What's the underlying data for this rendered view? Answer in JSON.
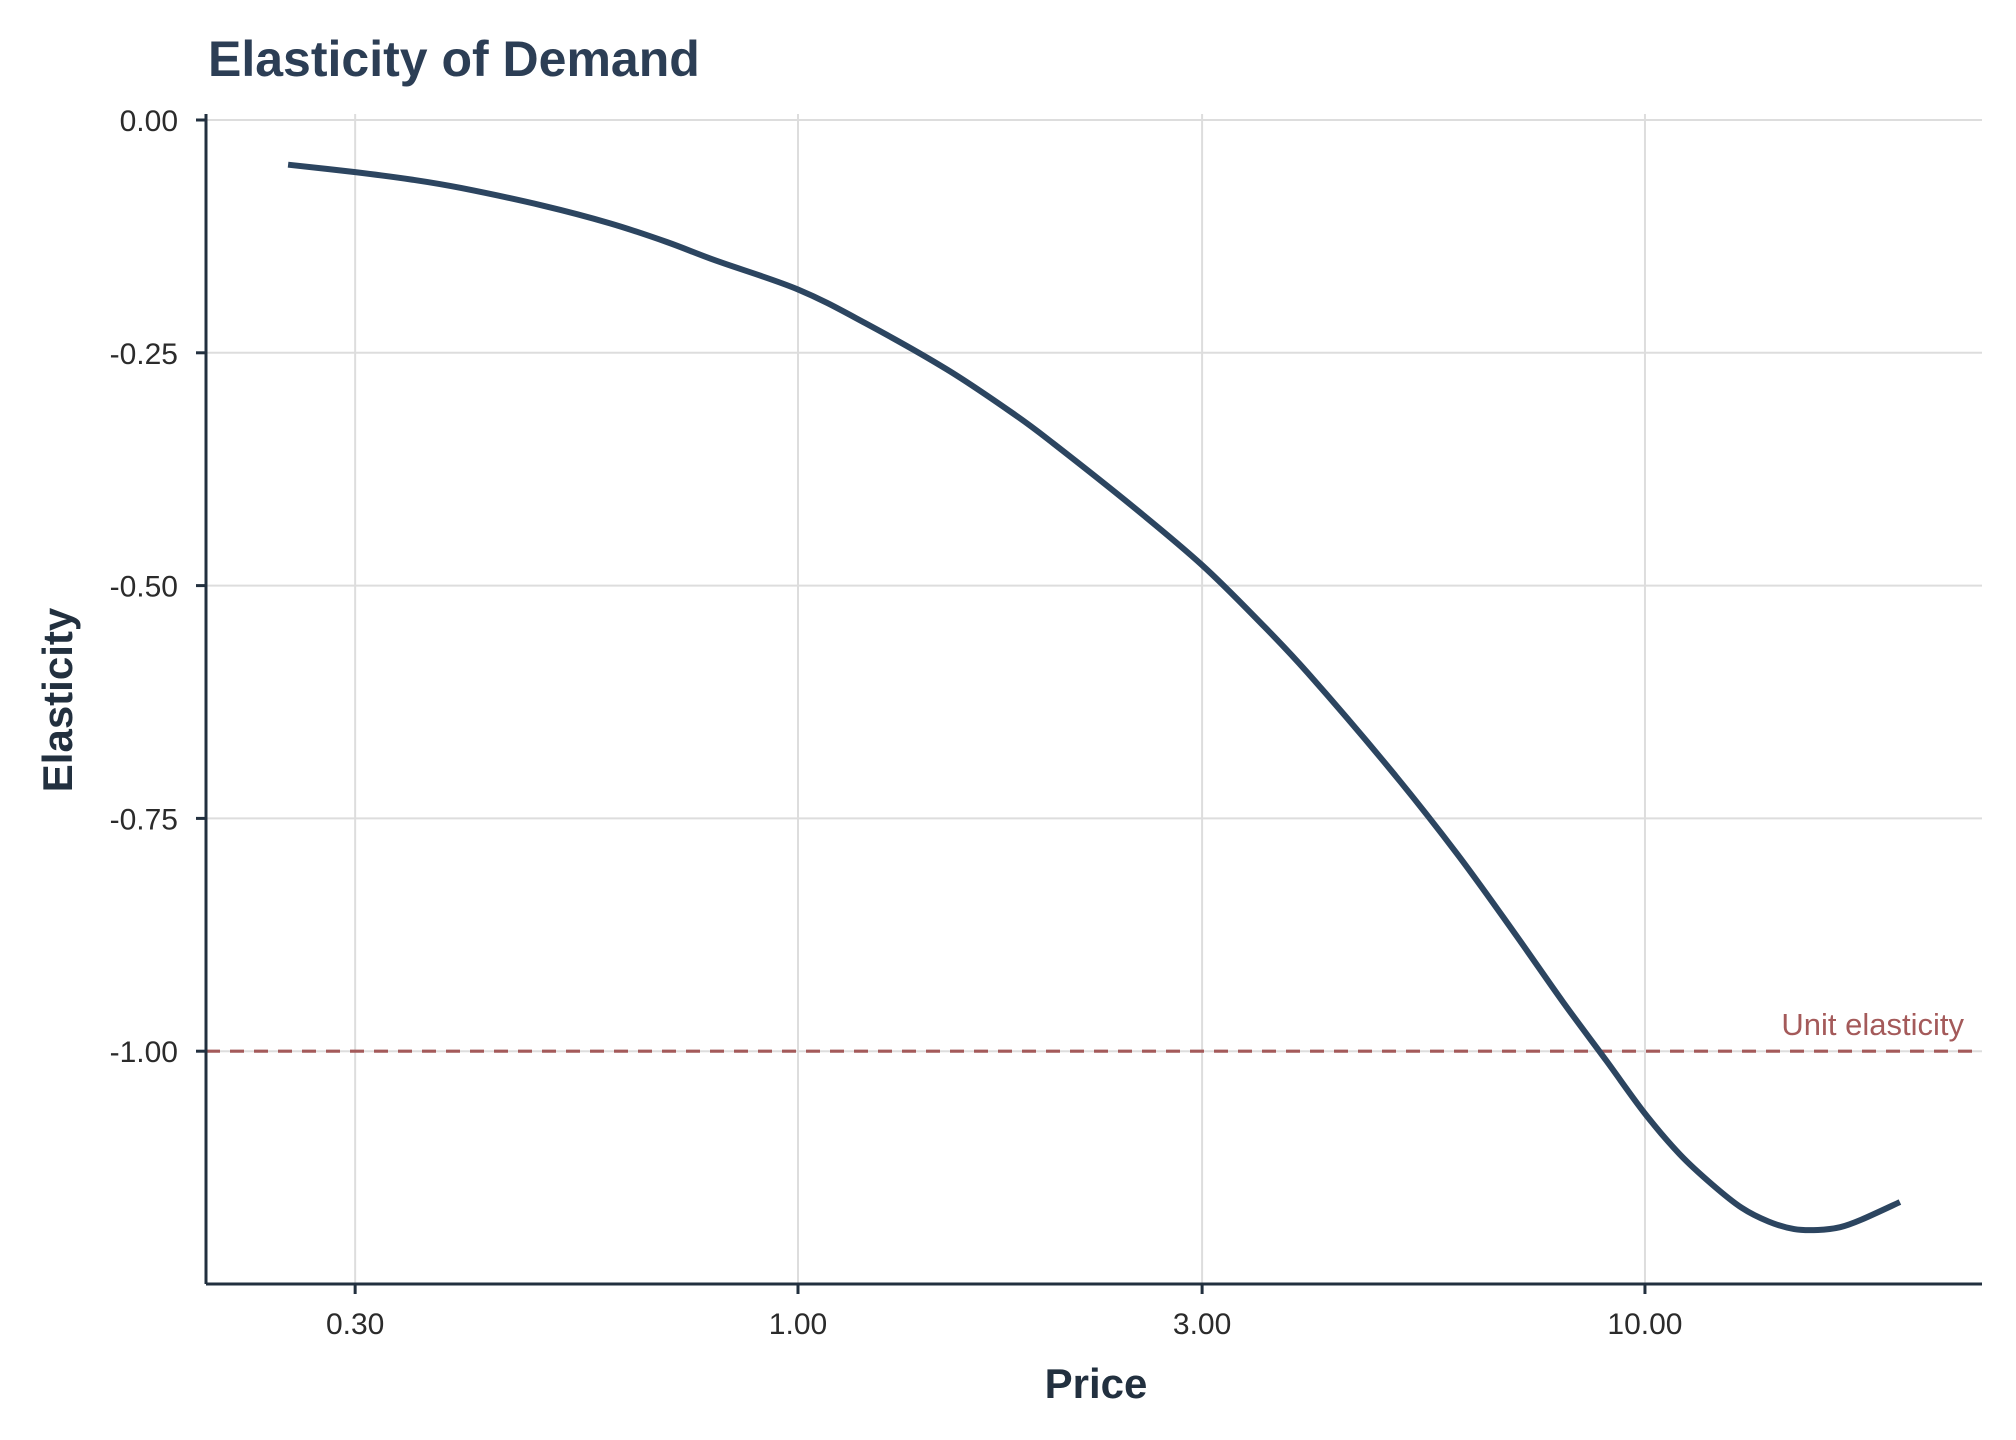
{
  "chart_data": {
    "type": "line",
    "title": "Elasticity of Demand",
    "xlabel": "Price",
    "ylabel": "Elasticity",
    "x_scale": "log",
    "xlim": [
      0.2,
      25
    ],
    "ylim": [
      -1.25,
      0.0
    ],
    "x_ticks": [
      0.3,
      1.0,
      3.0,
      10.0
    ],
    "x_tick_labels": [
      "0.30",
      "1.00",
      "3.00",
      "10.00"
    ],
    "y_ticks": [
      0.0,
      -0.25,
      -0.5,
      -0.75,
      -1.0
    ],
    "y_tick_labels": [
      "0.00",
      "-0.25",
      "-0.50",
      "-0.75",
      "-1.00"
    ],
    "grid": true,
    "series": [
      {
        "color": "#2c4560",
        "x": [
          0.25,
          0.3,
          0.35,
          0.4,
          0.5,
          0.6,
          0.7,
          0.8,
          1.0,
          1.2,
          1.5,
          1.8,
          2.0,
          2.5,
          3.0,
          3.5,
          4.0,
          5.0,
          6.0,
          7.0,
          8.0,
          9.0,
          10.0,
          11.0,
          12.0,
          13.0,
          14.0,
          15.0,
          16.0,
          17.0,
          18.0,
          20.0
        ],
        "y": [
          -0.048,
          -0.056,
          -0.064,
          -0.073,
          -0.092,
          -0.111,
          -0.131,
          -0.151,
          -0.182,
          -0.218,
          -0.268,
          -0.316,
          -0.347,
          -0.417,
          -0.478,
          -0.538,
          -0.594,
          -0.697,
          -0.788,
          -0.872,
          -0.947,
          -1.01,
          -1.067,
          -1.111,
          -1.143,
          -1.168,
          -1.183,
          -1.191,
          -1.192,
          -1.189,
          -1.181,
          -1.162
        ]
      }
    ],
    "reference_lines": [
      {
        "axis": "y",
        "value": -1.0,
        "label": "Unit elasticity",
        "color": "#a45a5a",
        "style": "dashed"
      }
    ]
  },
  "colors": {
    "line": "#2c4560",
    "reference": "#a45a5a",
    "axis": "#22303f",
    "grid": "#dddddd"
  }
}
